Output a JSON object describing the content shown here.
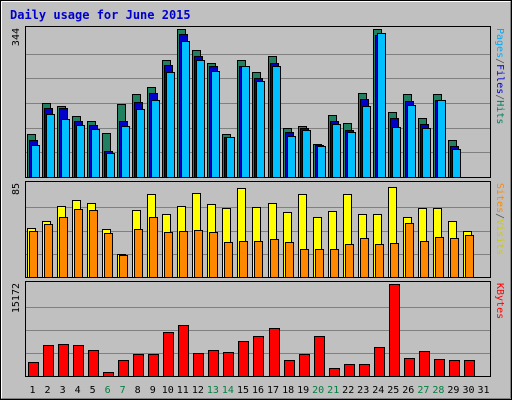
{
  "chart_data": {
    "type": "bar",
    "title": "Daily usage for June 2015",
    "categories": [
      "1",
      "2",
      "3",
      "4",
      "5",
      "6",
      "7",
      "8",
      "9",
      "10",
      "11",
      "12",
      "13",
      "14",
      "15",
      "16",
      "17",
      "18",
      "19",
      "20",
      "21",
      "22",
      "23",
      "24",
      "25",
      "26",
      "27",
      "28",
      "29",
      "30",
      "31"
    ],
    "weekend_days": [
      "6",
      "7",
      "13",
      "14",
      "20",
      "21",
      "27",
      "28"
    ],
    "panels": [
      {
        "id": "hits-files-pages",
        "ymax_label": "344",
        "ymax": 344,
        "right_label_parts": [
          {
            "text": "Pages",
            "color": "#00aaff"
          },
          {
            "text": "/",
            "color": "#555555"
          },
          {
            "text": "Files",
            "color": "#0000cc"
          },
          {
            "text": "/",
            "color": "#555555"
          },
          {
            "text": "Hits",
            "color": "#008060"
          }
        ],
        "series": [
          {
            "name": "Hits",
            "color": "#208060",
            "values": [
              100,
              171,
              166,
              142,
              130,
              103,
              169,
              192,
              210,
              272,
              344,
              296,
              265,
              101,
              273,
              245,
              281,
              114,
              118,
              77,
              143,
              125,
              196,
              344,
              151,
              193,
              136,
              194,
              85,
              0,
              0
            ]
          },
          {
            "name": "Files",
            "color": "#0000cc",
            "values": [
              85,
              160,
              160,
              130,
              120,
              60,
              130,
              175,
              195,
              261,
              332,
              282,
              257,
              92,
              257,
              230,
              264,
              105,
              115,
              74,
              131,
              110,
              181,
              330,
              138,
              176,
              124,
              179,
              73,
              0,
              0
            ]
          },
          {
            "name": "Pages",
            "color": "#00c0ff",
            "values": [
              74,
              146,
              134,
              122,
              111,
              55,
              119,
              158,
              180,
              245,
              316,
              272,
              247,
              94,
              257,
              222,
              258,
              96,
              110,
              71,
              124,
              104,
              164,
              334,
              117,
              168,
              113,
              178,
              66,
              0,
              0
            ]
          }
        ]
      },
      {
        "id": "visits-sites",
        "ymax_label": "85",
        "ymax": 85,
        "right_label_parts": [
          {
            "text": "Sites",
            "color": "#ff8800"
          },
          {
            "text": "/",
            "color": "#555555"
          },
          {
            "text": "Visits",
            "color": "#cccc00"
          }
        ],
        "series": [
          {
            "name": "Visits",
            "color": "#ffff00",
            "values": [
              45,
              51,
              65,
              70,
              68,
              44,
              21,
              61,
              76,
              58,
              65,
              77,
              67,
              63,
              81,
              64,
              68,
              59,
              76,
              55,
              60,
              76,
              58,
              58,
              82,
              55,
              63,
              63,
              51,
              42,
              0
            ]
          },
          {
            "name": "Sites",
            "color": "#ff8800",
            "values": [
              42,
              48,
              55,
              62,
              61,
              40,
              20,
              44,
              55,
              41,
              42,
              43,
              41,
              32,
              33,
              33,
              35,
              32,
              26,
              26,
              26,
              30,
              36,
              30,
              31,
              49,
              33,
              37,
              36,
              38,
              0
            ]
          }
        ]
      },
      {
        "id": "kbytes",
        "ymax_label": "15172",
        "ymax": 15172,
        "right_label_parts": [
          {
            "text": "KBytes",
            "color": "#ff0000"
          }
        ],
        "series": [
          {
            "name": "KBytes",
            "color": "#ff0000",
            "values": [
              2270,
              5180,
              5340,
              5170,
              4250,
              690,
              2670,
              3690,
              3620,
              7290,
              8410,
              3790,
              4350,
              3910,
              5730,
              6530,
              7920,
              2690,
              3560,
              6590,
              1240,
              1940,
              2010,
              4770,
              15172,
              2950,
              4180,
              2830,
              2660,
              2580,
              0
            ]
          }
        ]
      }
    ]
  }
}
